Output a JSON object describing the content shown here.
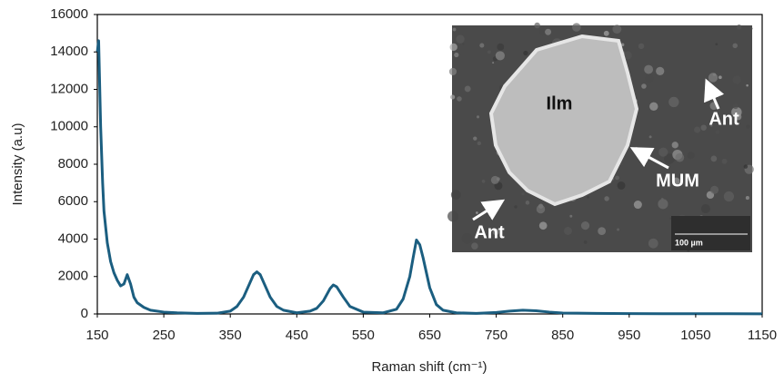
{
  "chart_data": {
    "type": "line",
    "x_label": "Raman shift (cm⁻¹)",
    "y_label": "Intensity (a.u)",
    "x": [
      150,
      152,
      155,
      158,
      160,
      165,
      170,
      175,
      180,
      185,
      190,
      195,
      200,
      205,
      210,
      220,
      230,
      250,
      270,
      300,
      330,
      350,
      360,
      370,
      380,
      385,
      390,
      395,
      400,
      410,
      420,
      430,
      450,
      470,
      480,
      490,
      500,
      505,
      510,
      520,
      530,
      550,
      580,
      600,
      610,
      620,
      625,
      630,
      635,
      640,
      650,
      660,
      670,
      690,
      720,
      750,
      770,
      790,
      810,
      830,
      850,
      900,
      950,
      1000,
      1050,
      1100,
      1150
    ],
    "series": [
      {
        "color": "#1b5e80",
        "values": [
          14000,
          14600,
          10000,
          7000,
          5500,
          3800,
          2800,
          2200,
          1800,
          1500,
          1600,
          2100,
          1600,
          900,
          600,
          350,
          200,
          100,
          60,
          30,
          40,
          150,
          400,
          900,
          1700,
          2100,
          2250,
          2100,
          1700,
          900,
          400,
          200,
          60,
          150,
          300,
          700,
          1350,
          1550,
          1450,
          900,
          400,
          100,
          60,
          250,
          800,
          2000,
          3000,
          3950,
          3700,
          3000,
          1400,
          500,
          200,
          60,
          30,
          80,
          150,
          200,
          170,
          100,
          50,
          30,
          20,
          15,
          10,
          10,
          5
        ]
      }
    ],
    "xlim": [
      150,
      1150
    ],
    "xticks": [
      150,
      250,
      350,
      450,
      550,
      650,
      750,
      850,
      950,
      1050,
      1150
    ],
    "ylim": [
      0,
      16000
    ],
    "yticks": [
      0,
      2000,
      4000,
      6000,
      8000,
      10000,
      12000,
      14000,
      16000
    ],
    "annotations": [
      "Ilm",
      "Ant",
      "MUM",
      "Ant",
      "100 µm"
    ]
  }
}
